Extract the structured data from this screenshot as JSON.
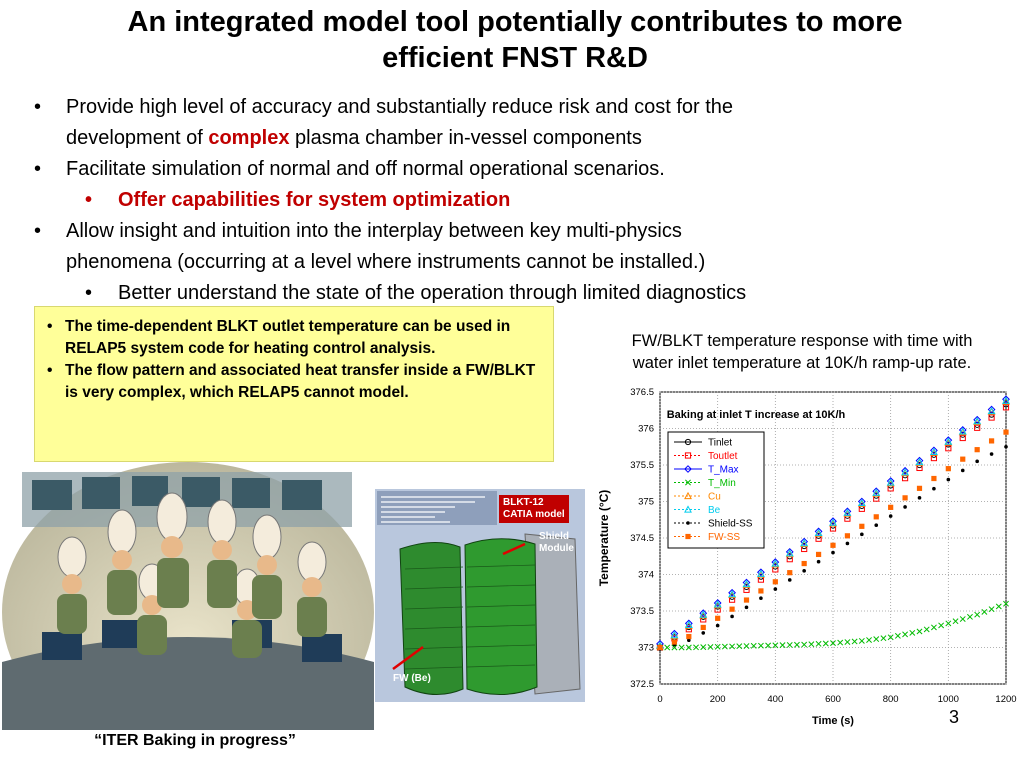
{
  "title": {
    "line1": "An integrated model tool potentially contributes to more",
    "line2": "efficient FNST R&D"
  },
  "bullets": {
    "b1a": "Provide high level of accuracy and substantially reduce risk and cost for the",
    "b1b_pre": "development of ",
    "b1b_red": "complex",
    "b1b_post": " plasma chamber in-vessel components",
    "b2": "Facilitate simulation of normal and off normal operational scenarios.",
    "b2_sub": "Offer capabilities for system optimization",
    "b3a": "Allow insight and intuition into the interplay between key multi-physics",
    "b3b": "phenomena (occurring at a level where instruments cannot be installed.)",
    "b3_sub": "Better understand the state of the operation through limited diagnostics"
  },
  "yellow_box": {
    "item1": "The time-dependent BLKT outlet temperature can be used in RELAP5 system code for heating control analysis.",
    "item2": "The flow pattern and associated heat transfer inside a FW/BLKT is very complex, which RELAP5 cannot model."
  },
  "caption": {
    "line1": "FW/BLKT temperature response with time with",
    "line2": "water inlet temperature at 10K/h ramp-up rate."
  },
  "cartoon_caption": "“ITER Baking in progress”",
  "catia": {
    "label_title": "BLKT-12 CATIA model",
    "label_title_1": "BLKT-12",
    "label_title_2": "CATIA model",
    "shield_1": "Shield",
    "shield_2": "Module",
    "fw": "FW (Be)"
  },
  "page_number": "3",
  "colors": {
    "highlight_red": "#c00000",
    "box_yellow": "#ffff99"
  },
  "chart_data": {
    "type": "scatter",
    "title": "Baking at inlet T increase at 10K/h",
    "xlabel": "Time (s)",
    "ylabel": "Temperature (°C)",
    "xlim": [
      0,
      1200
    ],
    "ylim": [
      372.5,
      376.5
    ],
    "xticks": [
      "0",
      "200",
      "400",
      "600",
      "800",
      "1000",
      "1200"
    ],
    "yticks": [
      "372.5",
      "373",
      "373.5",
      "374",
      "374.5",
      "375",
      "375.5",
      "376",
      "376.5"
    ],
    "grid": true,
    "legend_position": "top-left",
    "series": [
      {
        "name": "Tinlet",
        "marker": "circle",
        "color": "#000000",
        "x": [
          0,
          100,
          200,
          300,
          400,
          500,
          600,
          700,
          800,
          900,
          1000,
          1100,
          1200
        ],
        "values": [
          373.0,
          373.28,
          373.56,
          373.83,
          374.11,
          374.39,
          374.67,
          374.94,
          375.22,
          375.5,
          375.78,
          376.05,
          376.33
        ]
      },
      {
        "name": "Toutlet",
        "marker": "square",
        "color": "#ff0000",
        "x": [
          0,
          100,
          200,
          300,
          400,
          500,
          600,
          700,
          800,
          900,
          1000,
          1100,
          1200
        ],
        "values": [
          373.0,
          373.25,
          373.52,
          373.79,
          374.07,
          374.35,
          374.63,
          374.9,
          375.18,
          375.46,
          375.73,
          376.01,
          376.29
        ]
      },
      {
        "name": "T_Max",
        "marker": "diamond",
        "color": "#0000ff",
        "x": [
          0,
          100,
          200,
          300,
          400,
          500,
          600,
          700,
          800,
          900,
          1000,
          1100,
          1200
        ],
        "values": [
          373.05,
          373.33,
          373.61,
          373.89,
          374.17,
          374.45,
          374.73,
          375.0,
          375.28,
          375.56,
          375.84,
          376.12,
          376.4
        ]
      },
      {
        "name": "T_Min",
        "marker": "x",
        "color": "#00bb00",
        "x": [
          0,
          100,
          200,
          300,
          400,
          500,
          600,
          700,
          800,
          900,
          1000,
          1100,
          1200
        ],
        "values": [
          373.0,
          373.0,
          373.01,
          373.02,
          373.03,
          373.04,
          373.06,
          373.09,
          373.14,
          373.22,
          373.33,
          373.45,
          373.6
        ]
      },
      {
        "name": "Cu",
        "marker": "triangle",
        "color": "#ff8800",
        "x": [
          0,
          100,
          200,
          300,
          400,
          500,
          600,
          700,
          800,
          900,
          1000,
          1100,
          1200
        ],
        "values": [
          373.02,
          373.3,
          373.58,
          373.86,
          374.14,
          374.42,
          374.7,
          374.97,
          375.25,
          375.53,
          375.81,
          376.09,
          376.37
        ]
      },
      {
        "name": "Be",
        "marker": "triangle",
        "color": "#00ccee",
        "x": [
          0,
          100,
          200,
          300,
          400,
          500,
          600,
          700,
          800,
          900,
          1000,
          1100,
          1200
        ],
        "values": [
          373.03,
          373.31,
          373.59,
          373.87,
          374.15,
          374.43,
          374.71,
          374.98,
          375.26,
          375.54,
          375.82,
          376.1,
          376.38
        ]
      },
      {
        "name": "Shield-SS",
        "marker": "dot",
        "color": "#000000",
        "x": [
          0,
          100,
          200,
          300,
          400,
          500,
          600,
          700,
          800,
          900,
          1000,
          1100,
          1200
        ],
        "values": [
          372.98,
          373.1,
          373.3,
          373.55,
          373.8,
          374.05,
          374.3,
          374.55,
          374.8,
          375.05,
          375.3,
          375.55,
          375.75
        ]
      },
      {
        "name": "FW-SS",
        "marker": "filled-square",
        "color": "#ff6600",
        "x": [
          0,
          100,
          200,
          300,
          400,
          500,
          600,
          700,
          800,
          900,
          1000,
          1100,
          1200
        ],
        "values": [
          373.0,
          373.15,
          373.4,
          373.65,
          373.9,
          374.15,
          374.4,
          374.66,
          374.92,
          375.18,
          375.45,
          375.71,
          375.95
        ]
      }
    ]
  }
}
